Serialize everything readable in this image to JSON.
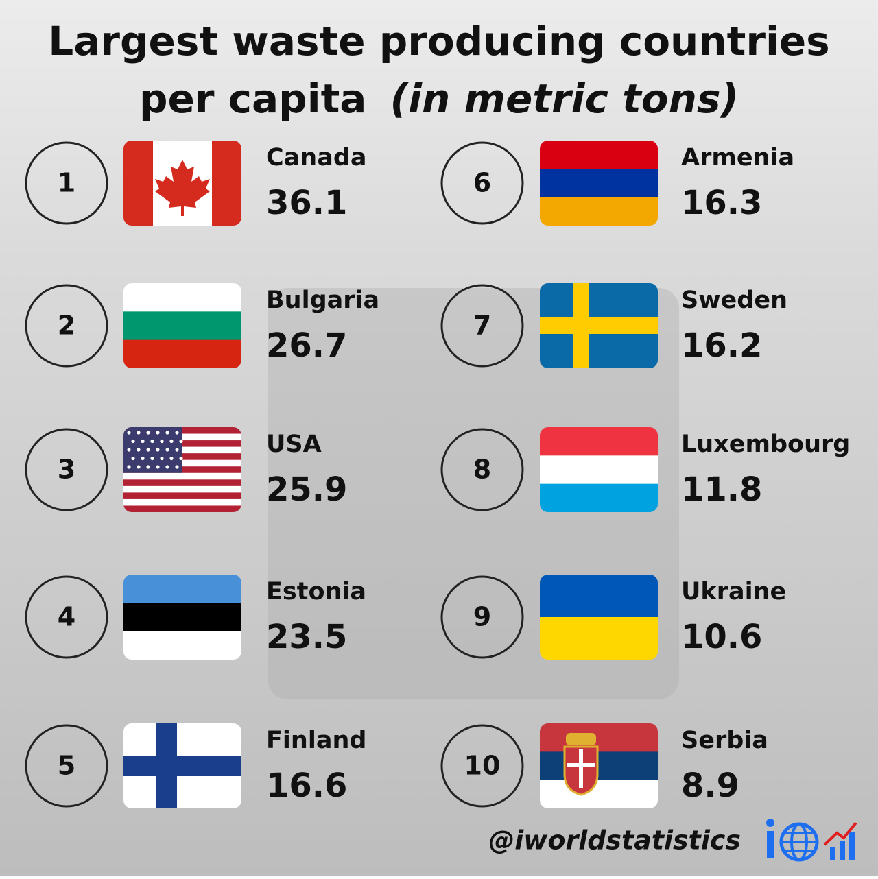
{
  "header": {
    "title": "Largest waste producing countries",
    "title_line2": "per capita",
    "subtitle": "(in metric tons)"
  },
  "items": [
    {
      "rank": 1,
      "country": "Canada",
      "value": 36.1
    },
    {
      "rank": 2,
      "country": "Bulgaria",
      "value": 26.7
    },
    {
      "rank": 3,
      "country": "USA",
      "value": 25.9
    },
    {
      "rank": 4,
      "country": "Estonia",
      "value": 23.5
    },
    {
      "rank": 5,
      "country": "Finland",
      "value": 16.6
    },
    {
      "rank": 6,
      "country": "Armenia",
      "value": 16.3
    },
    {
      "rank": 7,
      "country": "Sweden",
      "value": 16.2
    },
    {
      "rank": 8,
      "country": "Luxembourg",
      "value": 11.8
    },
    {
      "rank": 9,
      "country": "Ukraine",
      "value": 10.6
    },
    {
      "rank": 10,
      "country": "Serbia",
      "value": 8.9
    }
  ],
  "footer": {
    "handle": "@iworldstatistics"
  }
}
